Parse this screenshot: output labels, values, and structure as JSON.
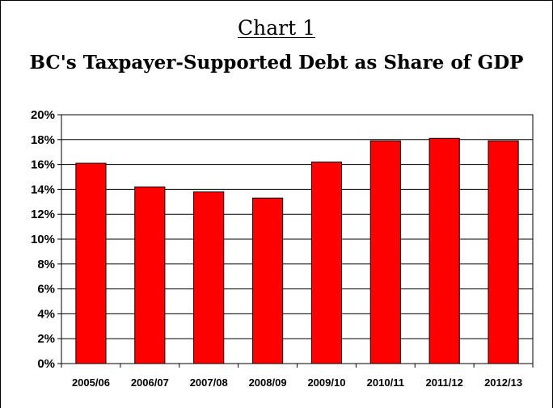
{
  "chart_data": {
    "type": "bar",
    "heading": "Chart 1",
    "title": "BC's Taxpayer-Supported Debt as Share of GDP",
    "categories": [
      "2005/06",
      "2006/07",
      "2007/08",
      "2008/09",
      "2009/10",
      "2010/11",
      "2011/12",
      "2012/13"
    ],
    "values": [
      16.1,
      14.2,
      13.8,
      13.3,
      16.2,
      17.9,
      18.1,
      17.9
    ],
    "ylim": [
      0,
      20
    ],
    "yticks": [
      "0%",
      "2%",
      "4%",
      "6%",
      "8%",
      "10%",
      "12%",
      "14%",
      "16%",
      "18%",
      "20%"
    ],
    "grid": true,
    "legend": "none",
    "bar_color": "#ff0000"
  }
}
